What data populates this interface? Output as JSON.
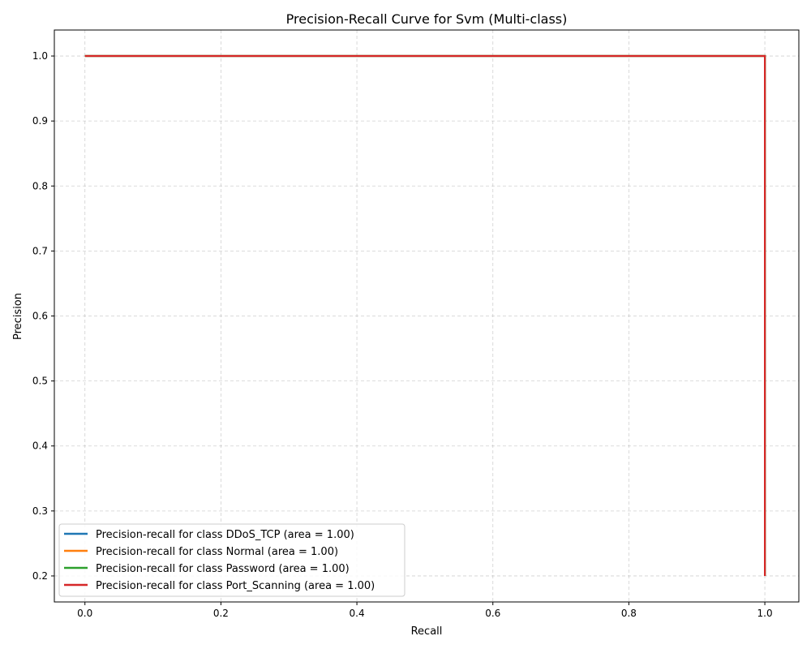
{
  "chart_data": {
    "type": "line",
    "title": "Precision-Recall Curve for Svm (Multi-class)",
    "xlabel": "Recall",
    "ylabel": "Precision",
    "xlim": [
      -0.045,
      1.05
    ],
    "ylim": [
      0.16,
      1.04
    ],
    "xticks": [
      "0.0",
      "0.2",
      "0.4",
      "0.6",
      "0.8",
      "1.0"
    ],
    "yticks": [
      "0.2",
      "0.3",
      "0.4",
      "0.5",
      "0.6",
      "0.7",
      "0.8",
      "0.9",
      "1.0"
    ],
    "grid": true,
    "legend_position": "lower-left",
    "series": [
      {
        "name": "Precision-recall for class DDoS_TCP (area = 1.00)",
        "color": "#1f77b4",
        "x": [
          0.0,
          1.0,
          1.0
        ],
        "y": [
          1.0,
          1.0,
          0.2
        ]
      },
      {
        "name": "Precision-recall for class Normal (area = 1.00)",
        "color": "#ff7f0e",
        "x": [
          0.0,
          1.0,
          1.0
        ],
        "y": [
          1.0,
          1.0,
          0.2
        ]
      },
      {
        "name": "Precision-recall for class Password (area = 1.00)",
        "color": "#2ca02c",
        "x": [
          0.0,
          1.0,
          1.0
        ],
        "y": [
          1.0,
          1.0,
          0.2
        ]
      },
      {
        "name": "Precision-recall for class Port_Scanning (area = 1.00)",
        "color": "#d62728",
        "x": [
          0.0,
          1.0,
          1.0
        ],
        "y": [
          1.0,
          1.0,
          0.2
        ]
      }
    ]
  }
}
